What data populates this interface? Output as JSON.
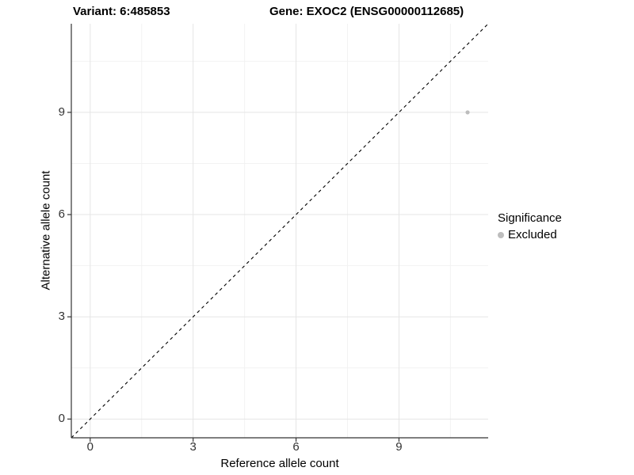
{
  "chart_data": {
    "type": "scatter",
    "title_left": "Variant: 6:485853",
    "title_right": "Gene: EXOC2 (ENSG00000112685)",
    "xlabel": "Reference allele count",
    "ylabel": "Alternative allele count",
    "xlim": [
      -0.55,
      11.6
    ],
    "ylim": [
      -0.55,
      11.6
    ],
    "xticks": [
      0,
      3,
      6,
      9
    ],
    "yticks": [
      0,
      3,
      6,
      9
    ],
    "minor_ticks": [
      1.5,
      4.5,
      7.5,
      10.5
    ],
    "grid": true,
    "identity_line": {
      "style": "dashed",
      "color": "#000000"
    },
    "series": [
      {
        "name": "Excluded",
        "color": "#bdbdbd",
        "points": [
          {
            "x": 11,
            "y": 9
          }
        ]
      }
    ],
    "legend": {
      "title": "Significance",
      "position": "right",
      "items": [
        {
          "label": "Excluded",
          "color": "#bdbdbd"
        }
      ]
    },
    "colors": {
      "axis_line": "#333333",
      "major_grid": "#e5e5e5",
      "minor_grid": "#f2f2f2",
      "tick_label": "#333333",
      "point": "#bdbdbd"
    }
  }
}
